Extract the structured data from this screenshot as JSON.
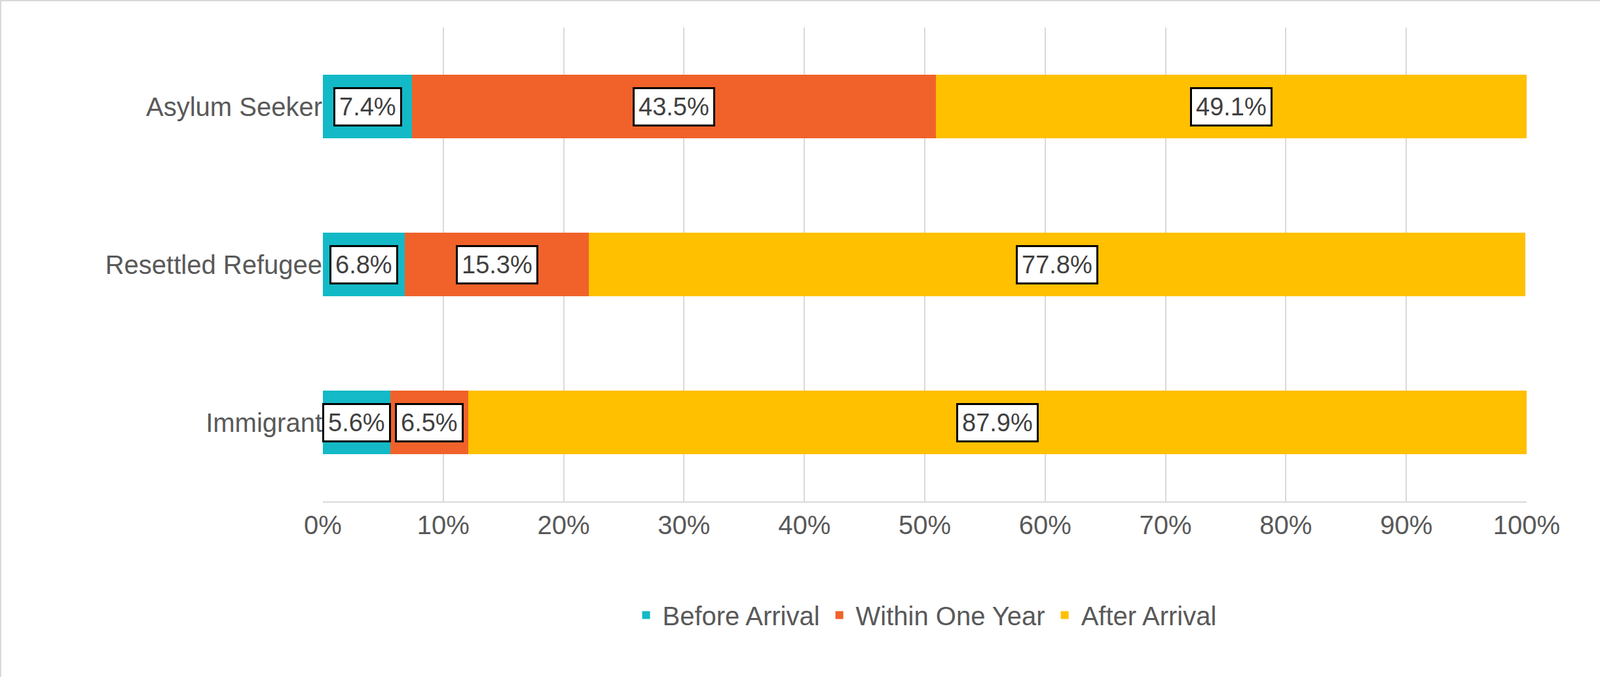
{
  "chart_data": {
    "type": "bar",
    "orientation": "horizontal",
    "stacked": true,
    "data_labels": true,
    "grid": true,
    "legend": "bottom",
    "categories": [
      "Asylum Seeker",
      "Resettled Refugee",
      "Immigrant"
    ],
    "series": [
      {
        "name": "Before Arrival",
        "color": "#13B9C6",
        "values": [
          7.4,
          6.8,
          5.6
        ],
        "value_labels": [
          "7.4%",
          "6.8%",
          "5.6%"
        ]
      },
      {
        "name": "Within One Year",
        "color": "#F0622A",
        "values": [
          43.5,
          15.3,
          6.5
        ],
        "value_labels": [
          "43.5%",
          "15.3%",
          "6.5%"
        ]
      },
      {
        "name": "After Arrival",
        "color": "#FFC000",
        "values": [
          49.1,
          77.8,
          87.9
        ],
        "value_labels": [
          "49.1%",
          "77.8%",
          "87.9%"
        ]
      }
    ],
    "xlim": [
      0,
      100
    ],
    "xticks": [
      {
        "value": 0,
        "label": "0%"
      },
      {
        "value": 10,
        "label": "10%"
      },
      {
        "value": 20,
        "label": "20%"
      },
      {
        "value": 30,
        "label": "30%"
      },
      {
        "value": 40,
        "label": "40%"
      },
      {
        "value": 50,
        "label": "50%"
      },
      {
        "value": 60,
        "label": "60%"
      },
      {
        "value": 70,
        "label": "70%"
      },
      {
        "value": 80,
        "label": "80%"
      },
      {
        "value": 90,
        "label": "90%"
      },
      {
        "value": 100,
        "label": "100%"
      }
    ]
  }
}
